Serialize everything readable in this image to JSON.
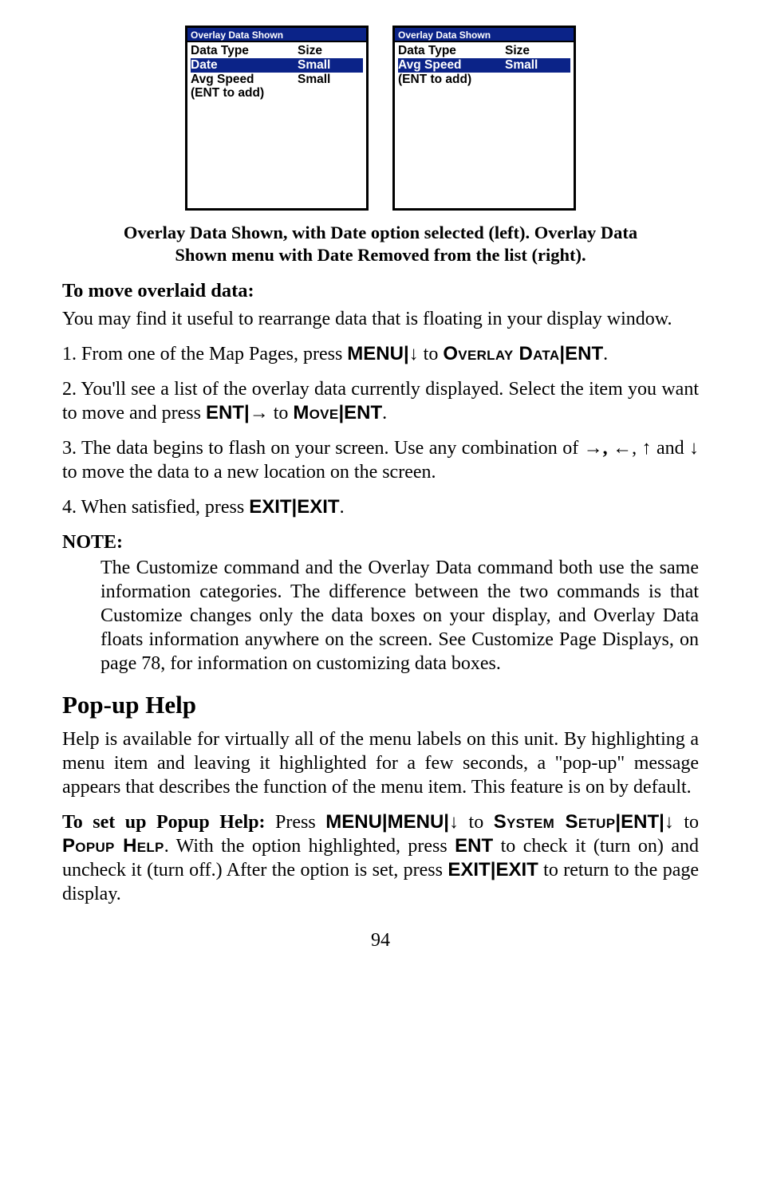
{
  "figure": {
    "left_panel": {
      "title": "Overlay Data Shown",
      "rows": [
        {
          "c1": "Data Type",
          "c2": "Size"
        },
        {
          "c1": "Date",
          "c2": "Small",
          "selected": true
        },
        {
          "c1": "Avg Speed",
          "c2": "Small"
        },
        {
          "c1": "(ENT to add)",
          "c2": ""
        }
      ]
    },
    "right_panel": {
      "title": "Overlay Data Shown",
      "rows": [
        {
          "c1": "Data Type",
          "c2": "Size"
        },
        {
          "c1": "Avg Speed",
          "c2": "Small",
          "selected": true
        },
        {
          "c1": "(ENT to add)",
          "c2": ""
        }
      ]
    }
  },
  "caption_line1": "Overlay Data Shown, with Date option selected (left). Overlay Data",
  "caption_line2": "Shown menu with Date Removed from the list (right).",
  "move_heading": "To move overlaid data:",
  "move_intro": "You may find it useful to rearrange data that is floating in your display window.",
  "step1_a": "1. From one of the Map Pages, press ",
  "step1_menu": "MENU",
  "step1_pipe": "|",
  "step1_to": " to ",
  "step1_overlay": "Overlay Data",
  "step1_ent": "ENT",
  "step1_dot": ".",
  "step2_a": "2. You'll see a list of the overlay data currently displayed. Select the item you want to move and press ",
  "step2_ent": "ENT",
  "step2_to": " to ",
  "step2_move": "Move",
  "step3_a": "3. The data begins to flash on your screen. Use any combination of ",
  "step3_b": " and ",
  "step3_c": " to move the data to a new location on the screen.",
  "step4_a": "4. When satisfied, press ",
  "step4_exit": "EXIT",
  "note_label": "NOTE:",
  "note_text": "The Customize command and the Overlay Data command both use the same information categories. The difference between the two commands is that Customize changes only the data boxes on your display, and Overlay Data floats information anywhere on the screen. See Customize Page Displays, on page 78, for information on customizing data boxes.",
  "popup_heading": "Pop-up Help",
  "popup_para": "Help is available for virtually all of the menu labels on this unit. By highlighting a menu item and leaving it highlighted for a few seconds, a \"pop-up\" message appears that describes the function of the menu item. This feature is on by default.",
  "popup2_a": "To set up Popup Help:",
  "popup2_b": " Press ",
  "popup2_menu": "MENU",
  "popup2_to": " to ",
  "popup2_sys": "System Setup",
  "popup2_ent": "ENT",
  "popup2_c": " to ",
  "popup2_ph": "Popup Help",
  "popup2_d": ". With the option highlighted, press ",
  "popup2_e": " to check it (turn on) and uncheck it (turn off.) After the option is set, press ",
  "popup2_exit": "EXIT",
  "popup2_f": " to return to the page display.",
  "arrow_down": "↓",
  "arrow_right": "→",
  "arrow_left": "←",
  "arrow_up": "↑",
  "comma": ", ",
  "comma_bold": ",",
  "page_no": "94"
}
